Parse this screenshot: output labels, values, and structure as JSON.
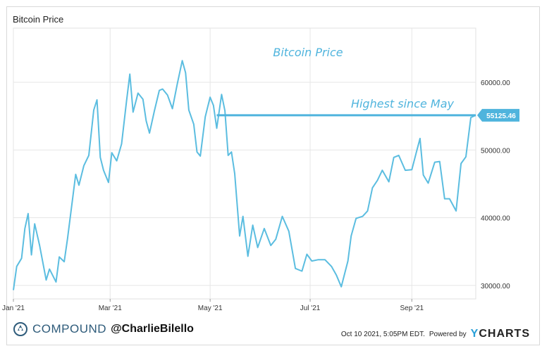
{
  "title": "Bitcoin Price",
  "brand": {
    "name": "COMPOUND",
    "handle": "@CharlieBilello"
  },
  "footer": {
    "timestamp": "Oct 10 2021, 5:05PM EDT.",
    "powered_by": "Powered by",
    "provider": "CHARTS",
    "provider_y": "Y"
  },
  "colors": {
    "line": "#5bbde0",
    "annotation": "#4fb4dd",
    "grid": "#e6e6e6",
    "brand": "#2e5b7a"
  },
  "icons": {
    "brand_logo": "compound-logo-icon"
  },
  "chart_data": {
    "type": "line",
    "title": "Bitcoin Price",
    "xlabel": "",
    "ylabel": "",
    "x_range": [
      "2021-01-01",
      "2021-10-10"
    ],
    "ylim": [
      28000,
      68000
    ],
    "y_ticks": [
      30000,
      40000,
      50000,
      60000
    ],
    "y_tick_labels": [
      "30000.00",
      "40000.00",
      "50000.00",
      "60000.00"
    ],
    "x_ticks": [
      "2021-01-01",
      "2021-03-01",
      "2021-05-01",
      "2021-07-01",
      "2021-09-01"
    ],
    "x_tick_labels": [
      "Jan '21",
      "Mar '21",
      "May '21",
      "Jul '21",
      "Sep '21"
    ],
    "grid": true,
    "legend": "none",
    "annotations": {
      "center_text": "Bitcoin Price",
      "line_text": "Highest since May",
      "last_value_label": "55125.46",
      "horizontal_line": {
        "y": 55125.46,
        "x_start": "2021-05-05",
        "x_end": "2021-10-10"
      }
    },
    "series": [
      {
        "x": [
          "2021-01-01",
          "2021-01-03",
          "2021-01-06",
          "2021-01-08",
          "2021-01-10",
          "2021-01-12",
          "2021-01-14",
          "2021-01-17",
          "2021-01-21",
          "2021-01-23",
          "2021-01-27",
          "2021-01-29",
          "2021-02-01",
          "2021-02-03",
          "2021-02-08",
          "2021-02-10",
          "2021-02-13",
          "2021-02-16",
          "2021-02-19",
          "2021-02-21",
          "2021-02-23",
          "2021-02-25",
          "2021-02-28",
          "2021-03-02",
          "2021-03-05",
          "2021-03-08",
          "2021-03-11",
          "2021-03-13",
          "2021-03-15",
          "2021-03-18",
          "2021-03-21",
          "2021-03-23",
          "2021-03-25",
          "2021-03-28",
          "2021-03-31",
          "2021-04-02",
          "2021-04-05",
          "2021-04-08",
          "2021-04-11",
          "2021-04-14",
          "2021-04-16",
          "2021-04-18",
          "2021-04-21",
          "2021-04-23",
          "2021-04-25",
          "2021-04-28",
          "2021-05-01",
          "2021-05-03",
          "2021-05-05",
          "2021-05-08",
          "2021-05-10",
          "2021-05-12",
          "2021-05-14",
          "2021-05-16",
          "2021-05-19",
          "2021-05-21",
          "2021-05-24",
          "2021-05-27",
          "2021-05-30",
          "2021-06-03",
          "2021-06-07",
          "2021-06-10",
          "2021-06-14",
          "2021-06-18",
          "2021-06-22",
          "2021-06-26",
          "2021-06-29",
          "2021-07-02",
          "2021-07-06",
          "2021-07-10",
          "2021-07-14",
          "2021-07-17",
          "2021-07-20",
          "2021-07-24",
          "2021-07-26",
          "2021-07-29",
          "2021-08-02",
          "2021-08-05",
          "2021-08-08",
          "2021-08-11",
          "2021-08-14",
          "2021-08-18",
          "2021-08-21",
          "2021-08-24",
          "2021-08-28",
          "2021-09-01",
          "2021-09-04",
          "2021-09-06",
          "2021-09-08",
          "2021-09-11",
          "2021-09-15",
          "2021-09-18",
          "2021-09-21",
          "2021-09-24",
          "2021-09-28",
          "2021-10-01",
          "2021-10-04",
          "2021-10-07",
          "2021-10-10"
        ],
        "y": [
          29300,
          32800,
          34000,
          38400,
          40600,
          34500,
          39100,
          35900,
          30800,
          32400,
          30500,
          34200,
          33500,
          36900,
          46400,
          44800,
          47700,
          49200,
          55900,
          57400,
          48900,
          47000,
          45200,
          49600,
          48400,
          50900,
          57200,
          61200,
          55600,
          58400,
          57500,
          54300,
          52500,
          55800,
          58800,
          59000,
          58100,
          56100,
          59800,
          63200,
          61400,
          55900,
          53800,
          49700,
          49100,
          54900,
          57800,
          56600,
          53200,
          58200,
          55800,
          49200,
          49700,
          46500,
          37300,
          40200,
          34300,
          38900,
          35600,
          38400,
          35900,
          36800,
          40200,
          38000,
          32500,
          32100,
          34600,
          33600,
          33800,
          33800,
          32800,
          31500,
          29800,
          33600,
          37300,
          39900,
          40200,
          41000,
          44400,
          45500,
          47000,
          45300,
          48900,
          49200,
          47000,
          47100,
          49900,
          51700,
          46300,
          45100,
          48200,
          48300,
          42800,
          42800,
          41000,
          48000,
          49000,
          54800,
          55125.46
        ]
      }
    ]
  }
}
